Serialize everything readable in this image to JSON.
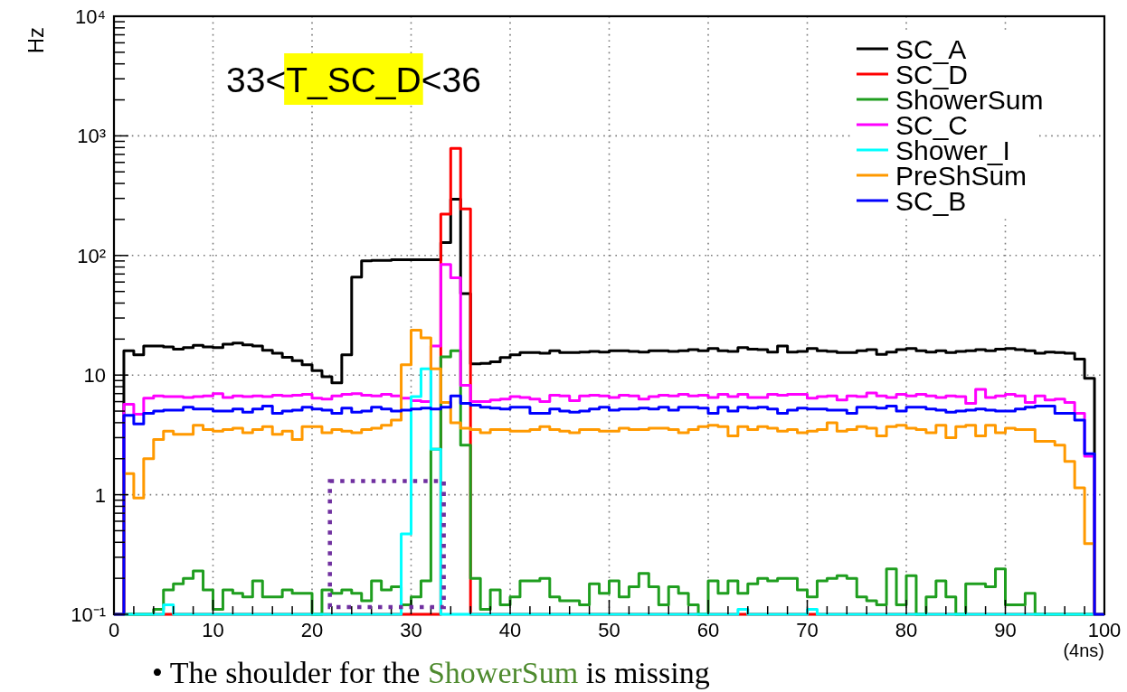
{
  "chart_data": {
    "type": "histogram",
    "xlabel": "(4ns)",
    "ylabel": "Hz",
    "annotations": [
      "33<T_SC_D<36",
      "• The shoulder for the ShowerSum is missing"
    ],
    "bins": [
      0,
      1,
      2,
      3,
      4,
      5,
      6,
      7,
      8,
      9,
      10,
      11,
      12,
      13,
      14,
      15,
      16,
      17,
      18,
      19,
      20,
      21,
      22,
      23,
      24,
      25,
      26,
      27,
      28,
      29,
      30,
      31,
      32,
      33,
      34,
      35,
      36,
      37,
      38,
      39,
      40,
      41,
      42,
      43,
      44,
      45,
      46,
      47,
      48,
      49,
      50,
      51,
      52,
      53,
      54,
      55,
      56,
      57,
      58,
      59,
      60,
      61,
      62,
      63,
      64,
      65,
      66,
      67,
      68,
      69,
      70,
      71,
      72,
      73,
      74,
      75,
      76,
      77,
      78,
      79,
      80,
      81,
      82,
      83,
      84,
      85,
      86,
      87,
      88,
      89,
      90,
      91,
      92,
      93,
      94,
      95,
      96,
      97,
      98,
      99,
      100
    ],
    "series": [
      {
        "name": "SC_A",
        "color": "#000000",
        "values": [
          0.1,
          16,
          14.8,
          17.5,
          17.5,
          17.2,
          16.5,
          17,
          17.7,
          17.2,
          17,
          18.1,
          18.5,
          17.9,
          17.5,
          16.1,
          15.2,
          14.1,
          13.2,
          12.2,
          10.9,
          9.7,
          8.6,
          14.8,
          66,
          90,
          91,
          91,
          92,
          92,
          92,
          92,
          92,
          128,
          295,
          48,
          12.4,
          12.5,
          12.9,
          14,
          14.8,
          15.4,
          15.4,
          15.2,
          16,
          15.4,
          15.4,
          15.6,
          15.8,
          15.6,
          16,
          16,
          15.8,
          15.6,
          16,
          16,
          15.8,
          16,
          16.3,
          16,
          16.7,
          16,
          15.8,
          17,
          16.5,
          16.3,
          15.6,
          17.5,
          15.6,
          15.8,
          16.7,
          16,
          15.8,
          15.4,
          15.4,
          16,
          16.3,
          14.9,
          15.6,
          16.3,
          16.7,
          16,
          15.6,
          16,
          15.4,
          15.8,
          16,
          16.3,
          16,
          16.5,
          16.7,
          16.3,
          16,
          15.2,
          15.6,
          15.4,
          15.2,
          13.6,
          9.4,
          0.1
        ]
      },
      {
        "name": "SC_D",
        "color": "#ff0000",
        "values": [
          0.1,
          0.1,
          0.1,
          0.1,
          0.1,
          0.1,
          0.1,
          0.1,
          0.1,
          0.1,
          0.1,
          0.1,
          0.1,
          0.1,
          0.1,
          0.1,
          0.1,
          0.1,
          0.1,
          0.1,
          0.1,
          0.1,
          0.1,
          0.1,
          0.1,
          0.1,
          0.1,
          0.1,
          0.1,
          0.1,
          0.1,
          0.1,
          0.1,
          222,
          785,
          245,
          0.1,
          0.1,
          0.1,
          0.1,
          0.1,
          0.1,
          0.1,
          0.1,
          0.1,
          0.1,
          0.1,
          0.1,
          0.1,
          0.1,
          0.1,
          0.1,
          0.1,
          0.1,
          0.1,
          0.1,
          0.1,
          0.1,
          0.1,
          0.1,
          0.1,
          0.1,
          0.1,
          0.1,
          0.1,
          0.1,
          0.1,
          0.1,
          0.1,
          0.1,
          0.1,
          0.1,
          0.1,
          0.1,
          0.1,
          0.1,
          0.1,
          0.1,
          0.1,
          0.1,
          0.1,
          0.1,
          0.1,
          0.1,
          0.1,
          0.1,
          0.1,
          0.1,
          0.1,
          0.1,
          0.1,
          0.1,
          0.1,
          0.1,
          0.1,
          0.1,
          0.1,
          0.1,
          0.1,
          0.1
        ]
      },
      {
        "name": "ShowerSum",
        "color": "#1f9e1f",
        "values": [
          0.1,
          0.1,
          0.1,
          0.1,
          0.11,
          0.16,
          0.18,
          0.2,
          0.23,
          0.16,
          0.11,
          0.16,
          0.15,
          0.14,
          0.19,
          0.14,
          0.14,
          0.16,
          0.15,
          0.15,
          0.1,
          0.16,
          0.15,
          0.16,
          0.15,
          0.13,
          0.19,
          0.16,
          0.17,
          0.12,
          0.14,
          0.19,
          2.4,
          14.2,
          16,
          2.6,
          0.2,
          0.11,
          0.16,
          0.12,
          0.14,
          0.19,
          0.19,
          0.2,
          0.14,
          0.13,
          0.13,
          0.12,
          0.18,
          0.15,
          0.19,
          0.14,
          0.17,
          0.22,
          0.17,
          0.12,
          0.17,
          0.15,
          0.12,
          0.1,
          0.19,
          0.15,
          0.19,
          0.15,
          0.18,
          0.2,
          0.19,
          0.2,
          0.2,
          0.16,
          0.14,
          0.19,
          0.2,
          0.21,
          0.2,
          0.14,
          0.13,
          0.12,
          0.24,
          0.12,
          0.21,
          0.1,
          0.14,
          0.19,
          0.14,
          0.1,
          0.18,
          0.18,
          0.17,
          0.24,
          0.12,
          0.12,
          0.15,
          0.1,
          0.1,
          0.1,
          0.1,
          0.1,
          0.1,
          0.1
        ]
      },
      {
        "name": "SC_C",
        "color": "#ff00ff",
        "values": [
          0.1,
          5.7,
          4.7,
          6.4,
          6.7,
          6.6,
          6.6,
          6.5,
          6.6,
          6.7,
          7,
          6.5,
          6.7,
          6.6,
          6.7,
          6.6,
          6.8,
          6.7,
          6.8,
          6.9,
          6.4,
          6.3,
          6.7,
          6.9,
          7,
          6.8,
          6.7,
          6.9,
          6.7,
          6.4,
          6.1,
          6,
          17.5,
          84,
          65,
          8.2,
          6,
          6,
          6.2,
          6.3,
          6.6,
          6.5,
          6.3,
          6,
          6.8,
          6.7,
          6.1,
          6.7,
          6.8,
          6.7,
          6.5,
          6.8,
          6.7,
          6.3,
          6.6,
          6.8,
          6.7,
          6.9,
          6.7,
          6.8,
          6.5,
          6.9,
          6.6,
          6.9,
          6.5,
          6.5,
          6.9,
          6.8,
          6.9,
          6.9,
          6.4,
          6.6,
          6.7,
          6.2,
          6.7,
          6.6,
          7.1,
          6.7,
          6.5,
          6.9,
          6.7,
          6.9,
          6.7,
          6.5,
          6.7,
          6.6,
          5.8,
          7.6,
          6.5,
          6.7,
          6.9,
          6.7,
          5.9,
          6.7,
          6.2,
          6.3,
          5.9,
          4.8,
          2.1,
          0.1
        ]
      },
      {
        "name": "Shower_I",
        "color": "#00ffff",
        "values": [
          0.1,
          0.1,
          0.1,
          0.1,
          0.1,
          0.12,
          0.1,
          0.1,
          0.1,
          0.1,
          0.1,
          0.1,
          0.1,
          0.1,
          0.1,
          0.1,
          0.1,
          0.1,
          0.1,
          0.1,
          0.1,
          0.1,
          0.1,
          0.1,
          0.1,
          0.1,
          0.1,
          0.1,
          0.1,
          0.47,
          6.6,
          11.3,
          2.4,
          0.1,
          0.1,
          0.1,
          0.1,
          0.1,
          0.1,
          0.1,
          0.1,
          0.1,
          0.1,
          0.1,
          0.1,
          0.1,
          0.1,
          0.1,
          0.1,
          0.1,
          0.1,
          0.1,
          0.1,
          0.1,
          0.1,
          0.1,
          0.1,
          0.1,
          0.1,
          0.1,
          0.1,
          0.1,
          0.1,
          0.11,
          0.1,
          0.1,
          0.1,
          0.1,
          0.1,
          0.1,
          0.11,
          0.1,
          0.1,
          0.1,
          0.1,
          0.1,
          0.1,
          0.1,
          0.1,
          0.1,
          0.1,
          0.1,
          0.1,
          0.1,
          0.1,
          0.1,
          0.1,
          0.1,
          0.1,
          0.1,
          0.1,
          0.1,
          0.1,
          0.1,
          0.1,
          0.1,
          0.1,
          0.1,
          0.1,
          0.1
        ]
      },
      {
        "name": "PreShSum",
        "color": "#ff9900",
        "values": [
          0.1,
          1.5,
          0.94,
          2,
          2.9,
          3.4,
          3.2,
          3.2,
          3.8,
          3.5,
          3.4,
          3.5,
          3.6,
          3.3,
          3.5,
          3.7,
          3.2,
          3.4,
          2.9,
          3.7,
          3.7,
          3.3,
          3.5,
          3.4,
          3.3,
          3.5,
          3.6,
          3.8,
          4.2,
          12.2,
          23.7,
          20.5,
          11.3,
          5.9,
          4,
          3.6,
          3.5,
          3.3,
          3.5,
          3.5,
          3.4,
          3.4,
          3.5,
          3.7,
          3.5,
          3.4,
          3.3,
          3.5,
          3.5,
          3.4,
          3.4,
          3.6,
          3.5,
          3.5,
          3.6,
          3.6,
          3.5,
          3.3,
          3.5,
          3.7,
          3.8,
          3.7,
          3.1,
          3.7,
          3.5,
          3.7,
          3.6,
          3.4,
          3.5,
          3.3,
          3.4,
          3.5,
          4,
          3.4,
          3.5,
          3.7,
          3.6,
          3.1,
          3.7,
          3.8,
          3.6,
          3.5,
          3.3,
          3.8,
          3,
          3.7,
          3.8,
          3.1,
          3.8,
          3.3,
          3.6,
          3.5,
          3.5,
          2.8,
          2.8,
          2.6,
          1.9,
          1.14,
          0.39,
          0.1
        ]
      },
      {
        "name": "SC_B",
        "color": "#0000ff",
        "values": [
          0.1,
          4.6,
          3.9,
          4.8,
          5,
          5.1,
          5.1,
          5.4,
          5.2,
          5.2,
          5,
          5,
          5.2,
          4.9,
          5.2,
          5.5,
          4.8,
          5,
          5.1,
          5.4,
          5.2,
          5.1,
          4.8,
          5.3,
          4.9,
          5,
          5.4,
          5.2,
          5,
          5.1,
          5.2,
          5.3,
          5.2,
          5.4,
          6.7,
          5.8,
          5.6,
          5.4,
          5.3,
          5.2,
          5.4,
          5.4,
          4.8,
          4.8,
          5.2,
          5,
          4.9,
          5,
          5.2,
          5.4,
          5.1,
          5.2,
          5.2,
          5.3,
          5.2,
          5.4,
          5.1,
          5.4,
          5.4,
          5.3,
          4.8,
          5.4,
          5,
          5.4,
          5.3,
          5.4,
          5.2,
          4.8,
          5.1,
          5.3,
          5.2,
          5.2,
          5.1,
          5.1,
          4.8,
          5.4,
          5.4,
          5.3,
          5.5,
          5,
          5.4,
          5.4,
          5.2,
          5.1,
          4.9,
          5,
          5.1,
          5.2,
          5.1,
          5,
          5,
          5.2,
          5.4,
          5.5,
          5.5,
          4.8,
          4.8,
          4.2,
          2.2,
          0.1
        ]
      }
    ],
    "xlim": [
      0,
      100
    ],
    "xticks": [
      0,
      {
        "value": 2,
        "label": null
      },
      {
        "value": 4,
        "label": null
      },
      {
        "value": 6,
        "label": null
      },
      {
        "value": 8,
        "label": null
      },
      10,
      {
        "value": 12,
        "label": null
      },
      {
        "value": 14,
        "label": null
      },
      {
        "value": 16,
        "label": null
      },
      {
        "value": 18,
        "label": null
      },
      20,
      {
        "value": 22,
        "label": null
      },
      {
        "value": 24,
        "label": null
      },
      {
        "value": 26,
        "label": null
      },
      {
        "value": 28,
        "label": null
      },
      30,
      {
        "value": 32,
        "label": null
      },
      {
        "value": 34,
        "label": null
      },
      {
        "value": 36,
        "label": null
      },
      {
        "value": 38,
        "label": null
      },
      40,
      {
        "value": 42,
        "label": null
      },
      {
        "value": 44,
        "label": null
      },
      {
        "value": 46,
        "label": null
      },
      {
        "value": 48,
        "label": null
      },
      50,
      {
        "value": 52,
        "label": null
      },
      {
        "value": 54,
        "label": null
      },
      {
        "value": 56,
        "label": null
      },
      {
        "value": 58,
        "label": null
      },
      60,
      {
        "value": 62,
        "label": null
      },
      {
        "value": 64,
        "label": null
      },
      {
        "value": 66,
        "label": null
      },
      {
        "value": 68,
        "label": null
      },
      70,
      {
        "value": 72,
        "label": null
      },
      {
        "value": 74,
        "label": null
      },
      {
        "value": 76,
        "label": null
      },
      {
        "value": 78,
        "label": null
      },
      80,
      {
        "value": 82,
        "label": null
      },
      {
        "value": 84,
        "label": null
      },
      {
        "value": 86,
        "label": null
      },
      {
        "value": 88,
        "label": null
      },
      90,
      {
        "value": 92,
        "label": null
      },
      {
        "value": 94,
        "label": null
      },
      {
        "value": 96,
        "label": null
      },
      {
        "value": 98,
        "label": null
      },
      100
    ],
    "ylim": [
      0.1,
      10000
    ],
    "yticks": [
      {
        "value": 0.1,
        "label": "10⁻¹"
      },
      {
        "value": 0.2,
        "label": null
      },
      {
        "value": 0.3,
        "label": null
      },
      {
        "value": 0.4,
        "label": null
      },
      {
        "value": 0.5,
        "label": null
      },
      {
        "value": 0.6,
        "label": null
      },
      {
        "value": 0.7,
        "label": null
      },
      {
        "value": 0.8,
        "label": null
      },
      {
        "value": 0.9,
        "label": null
      },
      1,
      {
        "value": 2,
        "label": null
      },
      {
        "value": 3,
        "label": null
      },
      {
        "value": 4,
        "label": null
      },
      {
        "value": 5,
        "label": null
      },
      {
        "value": 6,
        "label": null
      },
      {
        "value": 7,
        "label": null
      },
      {
        "value": 8,
        "label": null
      },
      {
        "value": 9,
        "label": null
      },
      10,
      {
        "value": 20,
        "label": null
      },
      {
        "value": 30,
        "label": null
      },
      {
        "value": 40,
        "label": null
      },
      {
        "value": 50,
        "label": null
      },
      {
        "value": 60,
        "label": null
      },
      {
        "value": 70,
        "label": null
      },
      {
        "value": 80,
        "label": null
      },
      {
        "value": 90,
        "label": null
      },
      {
        "value": 100,
        "label": "10²"
      },
      {
        "value": 200,
        "label": null
      },
      {
        "value": 300,
        "label": null
      },
      {
        "value": 400,
        "label": null
      },
      {
        "value": 500,
        "label": null
      },
      {
        "value": 600,
        "label": null
      },
      {
        "value": 700,
        "label": null
      },
      {
        "value": 800,
        "label": null
      },
      {
        "value": 900,
        "label": null
      },
      {
        "value": 1000,
        "label": "10³"
      },
      {
        "value": 2000,
        "label": null
      },
      {
        "value": 3000,
        "label": null
      },
      {
        "value": 4000,
        "label": null
      },
      {
        "value": 5000,
        "label": null
      },
      {
        "value": 6000,
        "label": null
      },
      {
        "value": 7000,
        "label": null
      },
      {
        "value": 8000,
        "label": null
      },
      {
        "value": 9000,
        "label": null
      },
      {
        "value": 10000,
        "label": "10⁴"
      }
    ],
    "log": true,
    "grid": true,
    "legend": "top right"
  }
}
